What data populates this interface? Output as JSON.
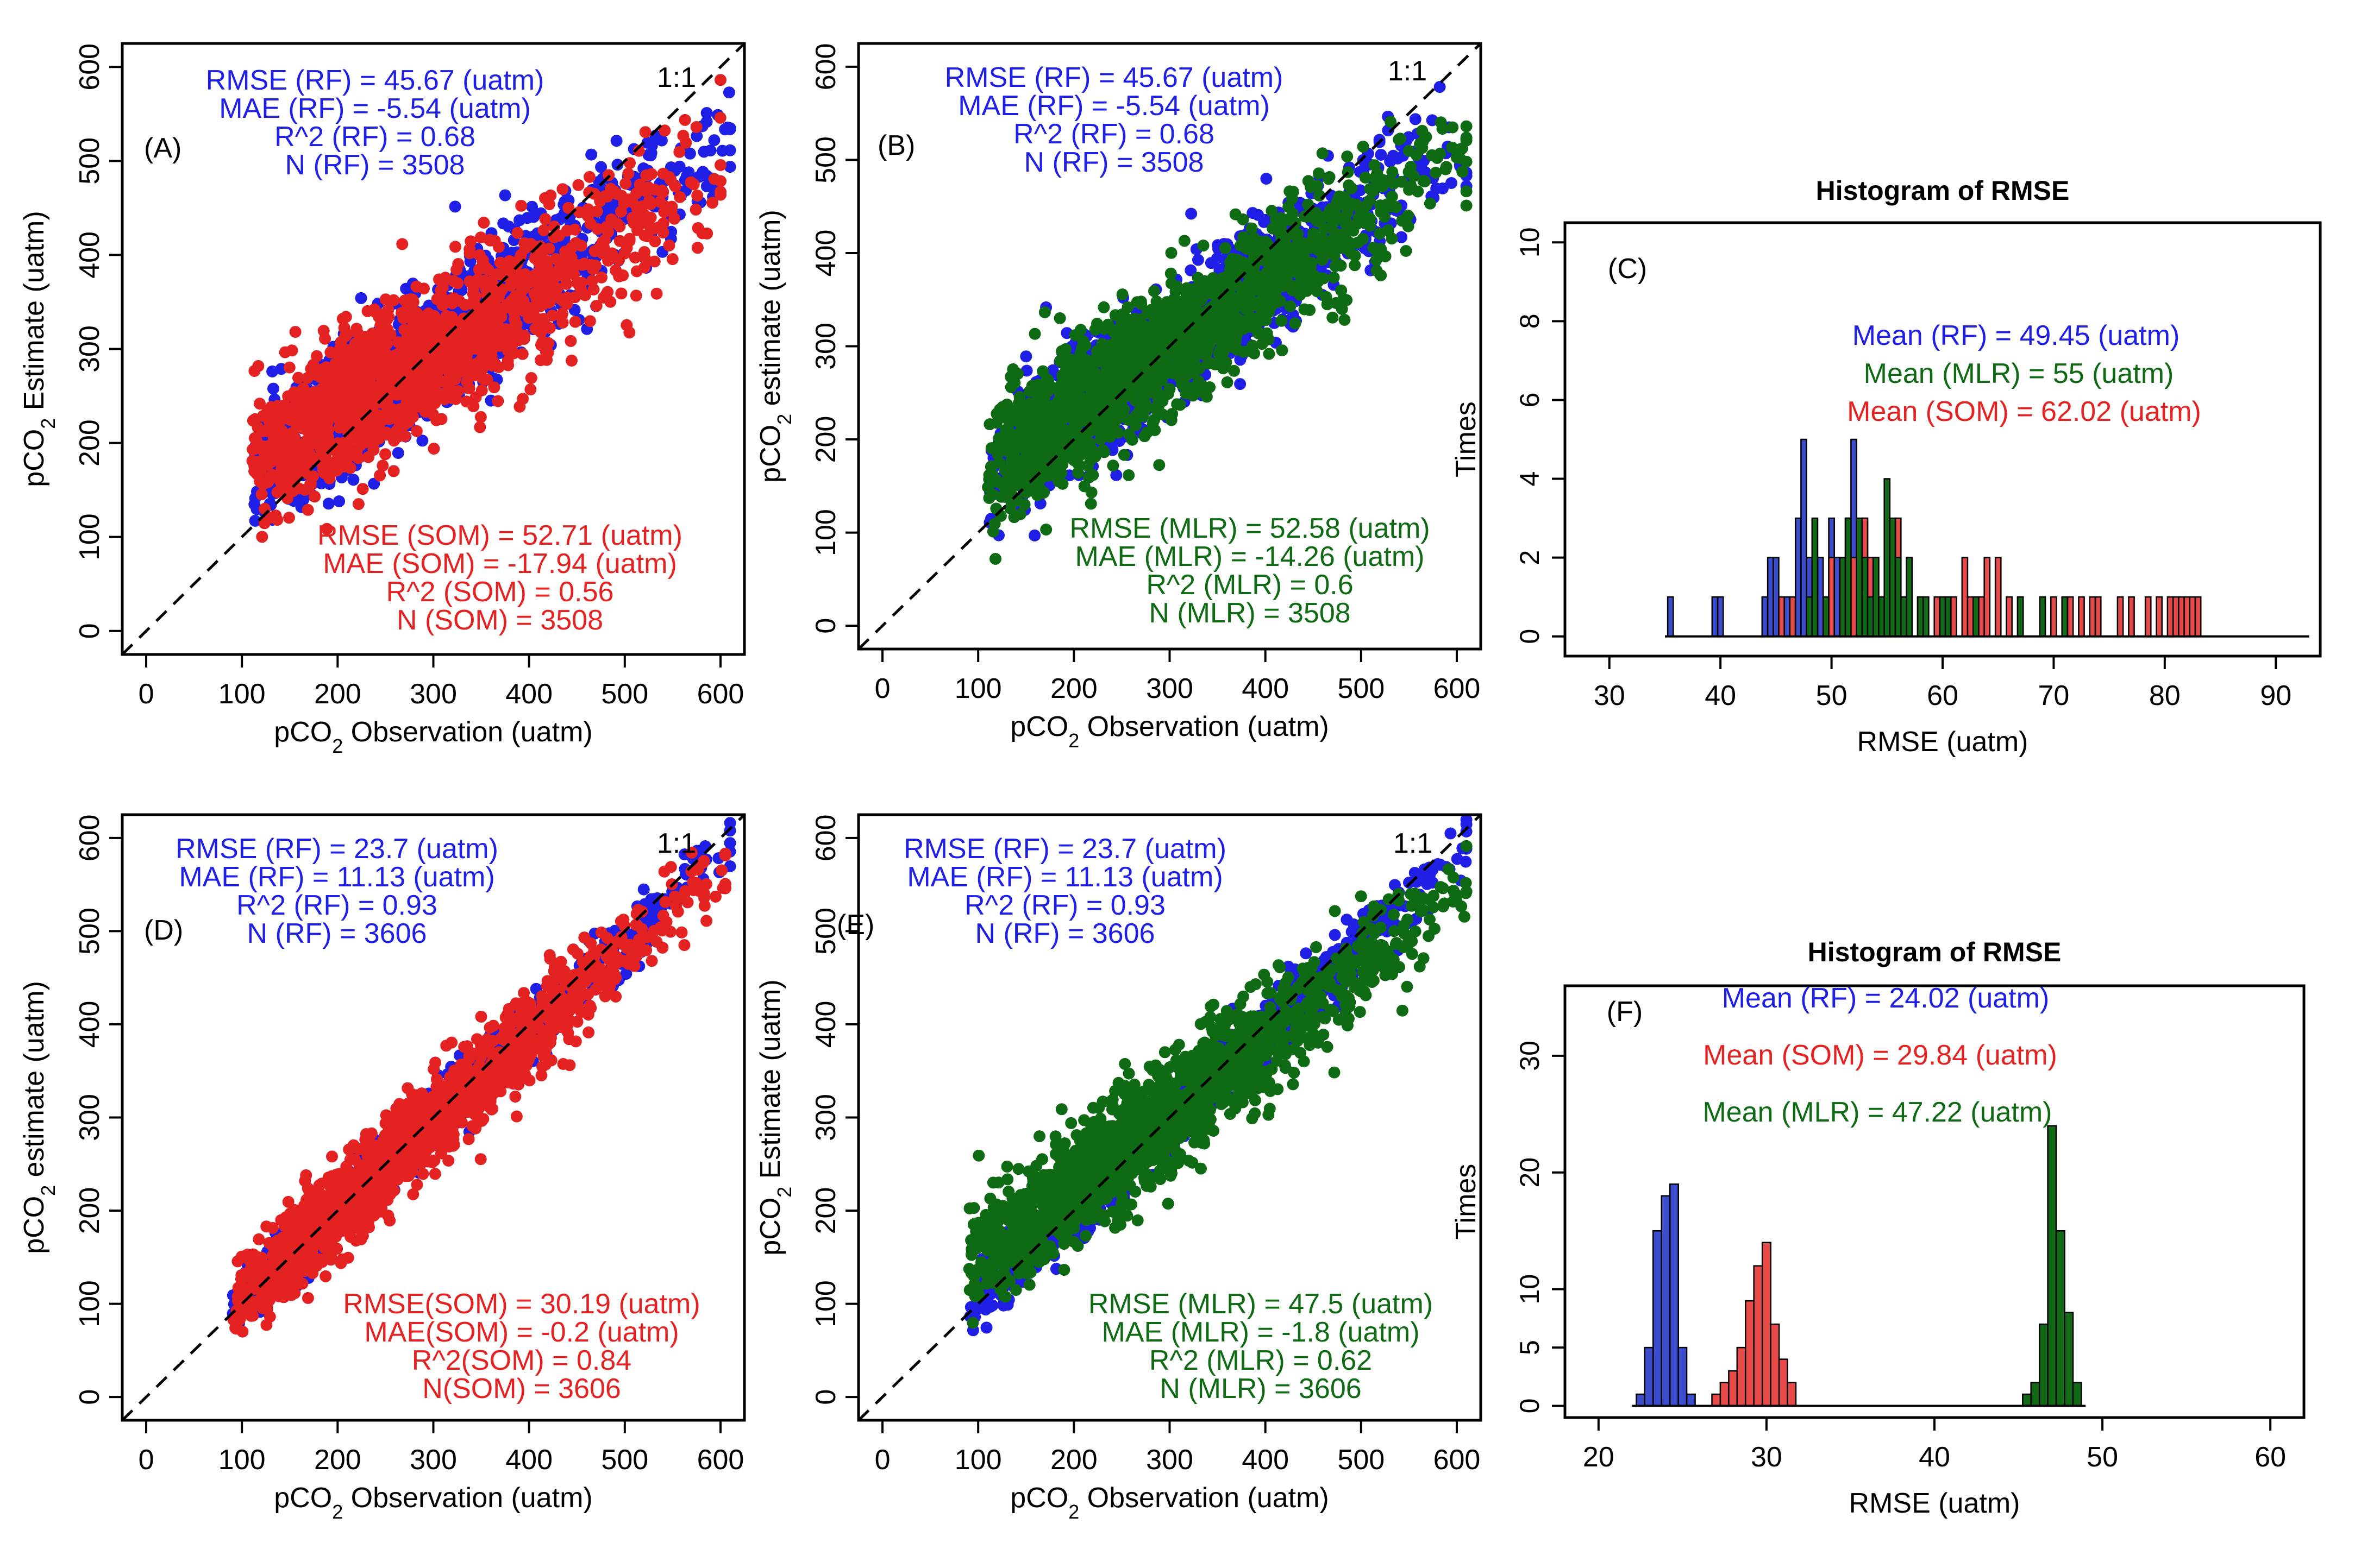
{
  "colors": {
    "rf": "#1f1fe6",
    "som": "#e52222",
    "mlr": "#0f6b13",
    "som_bar": "#e84a4a",
    "rf_bar": "#3b4ccc",
    "mlr_bar": "#126a16"
  },
  "chart_data": [
    {
      "id": "A",
      "type": "scatter",
      "panel_label": "(A)",
      "one_to_one_label": "1:1",
      "xlabel": {
        "pre": "pCO",
        "sub": "2",
        "post": " Observation (uatm)"
      },
      "ylabel": {
        "pre": "pCO",
        "sub": "2",
        "post": " Estimate (uatm)"
      },
      "xlim": [
        -25,
        625
      ],
      "ylim": [
        -25,
        625
      ],
      "xticks": [
        0,
        100,
        200,
        300,
        400,
        500,
        600
      ],
      "yticks": [
        0,
        100,
        200,
        300,
        400,
        500,
        600
      ],
      "series": [
        {
          "name": "RF",
          "color": "rf",
          "slope": 0.72,
          "intercept": 86,
          "sd": 34,
          "n": 1200,
          "xmin": 110,
          "xmax": 610,
          "seed": 11
        },
        {
          "name": "SOM",
          "color": "som",
          "slope": 0.62,
          "intercept": 110,
          "sd": 38,
          "n": 1400,
          "xmin": 110,
          "xmax": 600,
          "seed": 12
        }
      ],
      "stats_top": {
        "color": "rf",
        "lines": [
          "RMSE (RF) = 45.67 (uatm)",
          "MAE (RF) = -5.54 (uatm)",
          "R^2 (RF) = 0.68",
          "N (RF) = 3508"
        ]
      },
      "stats_bottom": {
        "color": "som",
        "lines": [
          "RMSE (SOM) = 52.71 (uatm)",
          "MAE (SOM) = -17.94 (uatm)",
          "R^2 (SOM) = 0.56",
          "N (SOM) = 3508"
        ]
      }
    },
    {
      "id": "B",
      "type": "scatter",
      "panel_label": "(B)",
      "one_to_one_label": "1:1",
      "xlabel": {
        "pre": "pCO",
        "sub": "2",
        "post": " Observation (uatm)"
      },
      "ylabel": {
        "pre": "pCO",
        "sub": "2",
        "post": " estimate (uatm)"
      },
      "xlim": [
        -25,
        625
      ],
      "ylim": [
        -25,
        625
      ],
      "xticks": [
        0,
        100,
        200,
        300,
        400,
        500,
        600
      ],
      "yticks": [
        0,
        100,
        200,
        300,
        400,
        500,
        600
      ],
      "series": [
        {
          "name": "RF",
          "color": "rf",
          "slope": 0.72,
          "intercept": 86,
          "sd": 34,
          "n": 1200,
          "xmin": 110,
          "xmax": 610,
          "seed": 21
        },
        {
          "name": "MLR",
          "color": "mlr",
          "slope": 0.68,
          "intercept": 95,
          "sd": 36,
          "n": 1500,
          "xmin": 110,
          "xmax": 610,
          "seed": 22
        }
      ],
      "stats_top": {
        "color": "rf",
        "lines": [
          "RMSE (RF) = 45.67 (uatm)",
          "MAE (RF) = -5.54 (uatm)",
          "R^2 (RF) = 0.68",
          "N (RF) = 3508"
        ]
      },
      "stats_bottom": {
        "color": "mlr",
        "lines": [
          "RMSE (MLR) = 52.58 (uatm)",
          "MAE (MLR) = -14.26 (uatm)",
          "R^2 (MLR) = 0.6",
          "N (MLR) = 3508"
        ]
      }
    },
    {
      "id": "C",
      "type": "histogram",
      "title": "Histogram of RMSE",
      "panel_label": "(C)",
      "xlabel": "RMSE (uatm)",
      "ylabel": "Times",
      "xlim": [
        26,
        94
      ],
      "ylim": [
        -0.5,
        10.5
      ],
      "xticks": [
        30,
        40,
        50,
        60,
        70,
        80,
        90
      ],
      "yticks": [
        0,
        2,
        4,
        6,
        8,
        10
      ],
      "bin_width": 0.5,
      "baseline": [
        35,
        93
      ],
      "series": [
        {
          "name": "RF",
          "color": "rf_bar",
          "counts": [
            [
              35.5,
              1
            ],
            [
              39.5,
              1
            ],
            [
              40,
              1
            ],
            [
              44,
              1
            ],
            [
              44.5,
              2
            ],
            [
              45,
              2
            ],
            [
              45.5,
              1
            ],
            [
              46,
              1
            ],
            [
              47,
              3
            ],
            [
              47.5,
              5
            ],
            [
              48,
              2
            ],
            [
              48.5,
              1
            ],
            [
              49,
              2
            ],
            [
              49.5,
              1
            ],
            [
              50,
              3
            ],
            [
              50.5,
              2
            ],
            [
              51,
              1
            ],
            [
              51.5,
              3
            ],
            [
              52,
              5
            ],
            [
              52.5,
              2
            ],
            [
              53,
              3
            ],
            [
              53.5,
              1
            ],
            [
              54,
              2
            ]
          ]
        },
        {
          "name": "SOM",
          "color": "som_bar",
          "counts": [
            [
              45.5,
              1
            ],
            [
              46.5,
              1
            ],
            [
              50,
              2
            ],
            [
              51.5,
              3
            ],
            [
              52,
              2
            ],
            [
              53,
              3
            ],
            [
              53.5,
              2
            ],
            [
              55,
              1
            ],
            [
              56,
              3
            ],
            [
              57,
              2
            ],
            [
              58,
              1
            ],
            [
              59.5,
              1
            ],
            [
              60.5,
              1
            ],
            [
              61,
              1
            ],
            [
              62,
              2
            ],
            [
              62.5,
              1
            ],
            [
              63.5,
              1
            ],
            [
              64,
              2
            ],
            [
              65,
              2
            ],
            [
              66,
              1
            ],
            [
              67,
              1
            ],
            [
              70,
              1
            ],
            [
              71.5,
              1
            ],
            [
              72.5,
              1
            ],
            [
              73.5,
              1
            ],
            [
              74,
              1
            ],
            [
              76,
              1
            ],
            [
              77,
              1
            ],
            [
              78.5,
              1
            ],
            [
              79.5,
              1
            ],
            [
              80.5,
              1
            ],
            [
              81,
              1
            ],
            [
              81.5,
              1
            ],
            [
              82,
              1
            ],
            [
              82.5,
              1
            ],
            [
              83,
              1
            ]
          ]
        },
        {
          "name": "MLR",
          "color": "mlr_bar",
          "counts": [
            [
              48,
              1
            ],
            [
              48.5,
              3
            ],
            [
              49.5,
              1
            ],
            [
              51,
              2
            ],
            [
              51.5,
              3
            ],
            [
              52.5,
              3
            ],
            [
              53,
              2
            ],
            [
              53.5,
              1
            ],
            [
              54,
              2
            ],
            [
              54.5,
              1
            ],
            [
              55,
              4
            ],
            [
              55.5,
              3
            ],
            [
              56,
              2
            ],
            [
              56.5,
              1
            ],
            [
              57,
              2
            ],
            [
              58,
              1
            ],
            [
              58.5,
              1
            ],
            [
              60,
              1
            ],
            [
              60.5,
              1
            ],
            [
              63,
              1
            ],
            [
              67,
              1
            ],
            [
              69,
              1
            ],
            [
              71,
              1
            ]
          ]
        }
      ],
      "annotations": [
        {
          "text": "Mean (RF) =  49.45 (uatm)",
          "color": "rf"
        },
        {
          "text": "Mean (MLR) =  55 (uatm)",
          "color": "mlr"
        },
        {
          "text": "Mean (SOM) =  62.02 (uatm)",
          "color": "som"
        }
      ]
    },
    {
      "id": "D",
      "type": "scatter",
      "panel_label": "(D)",
      "one_to_one_label": "1:1",
      "xlabel": {
        "pre": "pCO",
        "sub": "2",
        "post": " Observation (uatm)"
      },
      "ylabel": {
        "pre": "pCO",
        "sub": "2",
        "post": " estimate (uatm)"
      },
      "xlim": [
        -25,
        625
      ],
      "ylim": [
        -25,
        625
      ],
      "xticks": [
        0,
        100,
        200,
        300,
        400,
        500,
        600
      ],
      "yticks": [
        0,
        100,
        200,
        300,
        400,
        500,
        600
      ],
      "series": [
        {
          "name": "RF",
          "color": "rf",
          "slope": 0.96,
          "intercept": 10,
          "sd": 16,
          "n": 1100,
          "xmin": 90,
          "xmax": 610,
          "seed": 41
        },
        {
          "name": "SOM",
          "color": "som",
          "slope": 0.92,
          "intercept": 18,
          "sd": 24,
          "n": 1500,
          "xmin": 90,
          "xmax": 605,
          "seed": 42
        }
      ],
      "stats_top": {
        "color": "rf",
        "lines": [
          "RMSE (RF) = 23.7 (uatm)",
          "MAE (RF) = 11.13 (uatm)",
          "R^2 (RF) = 0.93",
          "N (RF) = 3606"
        ]
      },
      "stats_bottom": {
        "color": "som",
        "lines": [
          "RMSE(SOM) = 30.19 (uatm)",
          "MAE(SOM) = -0.2 (uatm)",
          "R^2(SOM) = 0.84",
          "N(SOM) = 3606"
        ]
      }
    },
    {
      "id": "E",
      "type": "scatter",
      "panel_label": "(E)",
      "one_to_one_label": "1:1",
      "xlabel": {
        "pre": "pCO",
        "sub": "2",
        "post": " Observation (uatm)"
      },
      "ylabel": {
        "pre": "pCO",
        "sub": "2",
        "post": " Estimate (uatm)"
      },
      "xlim": [
        -25,
        625
      ],
      "ylim": [
        -25,
        625
      ],
      "xticks": [
        0,
        100,
        200,
        300,
        400,
        500,
        600
      ],
      "yticks": [
        0,
        100,
        200,
        300,
        400,
        500,
        600
      ],
      "series": [
        {
          "name": "RF",
          "color": "rf",
          "slope": 0.96,
          "intercept": 10,
          "sd": 16,
          "n": 1100,
          "xmin": 90,
          "xmax": 610,
          "seed": 51
        },
        {
          "name": "MLR",
          "color": "mlr",
          "slope": 0.78,
          "intercept": 70,
          "sd": 30,
          "n": 1600,
          "xmin": 90,
          "xmax": 610,
          "seed": 52
        }
      ],
      "stats_top": {
        "color": "rf",
        "lines": [
          "RMSE (RF) = 23.7 (uatm)",
          "MAE (RF) = 11.13 (uatm)",
          "R^2 (RF) = 0.93",
          "N (RF) = 3606"
        ]
      },
      "stats_bottom": {
        "color": "mlr",
        "lines": [
          "RMSE (MLR) = 47.5 (uatm)",
          "MAE (MLR) = -1.8 (uatm)",
          "R^2 (MLR) = 0.62",
          "N (MLR) = 3606"
        ]
      }
    },
    {
      "id": "F",
      "type": "histogram",
      "title": "Histogram of RMSE",
      "panel_label": "(F)",
      "xlabel": "RMSE (uatm)",
      "ylabel": "Times",
      "xlim": [
        18,
        62
      ],
      "ylim": [
        -1,
        36
      ],
      "xticks": [
        20,
        30,
        40,
        50,
        60
      ],
      "yticks": [
        0,
        5,
        10,
        20,
        30
      ],
      "bin_width": 0.5,
      "baseline": [
        22,
        49
      ],
      "series": [
        {
          "name": "RF",
          "color": "rf_bar",
          "counts": [
            [
              22.5,
              1
            ],
            [
              23,
              5
            ],
            [
              23.5,
              15
            ],
            [
              24,
              18
            ],
            [
              24.5,
              19
            ],
            [
              25,
              5
            ],
            [
              25.5,
              1
            ]
          ]
        },
        {
          "name": "SOM",
          "color": "som_bar",
          "counts": [
            [
              27,
              1
            ],
            [
              27.5,
              2
            ],
            [
              28,
              3
            ],
            [
              28.5,
              5
            ],
            [
              29,
              9
            ],
            [
              29.5,
              12
            ],
            [
              30,
              14
            ],
            [
              30.5,
              7
            ],
            [
              31,
              4
            ],
            [
              31.5,
              2
            ]
          ]
        },
        {
          "name": "MLR",
          "color": "mlr_bar",
          "counts": [
            [
              45.5,
              1
            ],
            [
              46,
              2
            ],
            [
              46.5,
              7
            ],
            [
              47,
              24
            ],
            [
              47.5,
              15
            ],
            [
              48,
              8
            ],
            [
              48.5,
              2
            ]
          ]
        }
      ],
      "annotations": [
        {
          "text": "Mean (RF) =  24.02 (uatm)",
          "color": "rf"
        },
        {
          "text": "Mean (SOM) =  29.84 (uatm)",
          "color": "som"
        },
        {
          "text": "Mean (MLR) =  47.22 (uatm)",
          "color": "mlr"
        }
      ]
    }
  ]
}
